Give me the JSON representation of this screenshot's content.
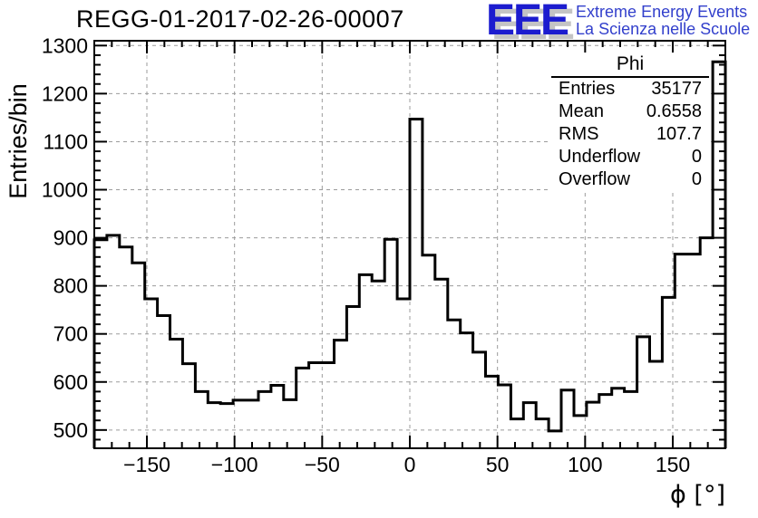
{
  "header": {
    "title": "REGG-01-2017-02-26-00007",
    "logo": {
      "acronym": "EEE",
      "line1": "Extreme Energy Events",
      "line2": "La Scienza nelle Scuole",
      "blue": "#1c1ccf",
      "shadow": "#c4c4c4"
    }
  },
  "stats_box": {
    "title": "Phi",
    "rows": [
      {
        "label": "Entries",
        "value": "35177"
      },
      {
        "label": "Mean",
        "value": "0.6558"
      },
      {
        "label": "RMS",
        "value": "107.7"
      },
      {
        "label": "Underflow",
        "value": "0"
      },
      {
        "label": "Overflow",
        "value": "0"
      }
    ]
  },
  "chart_data": {
    "type": "bar",
    "subtype": "step-histogram",
    "title": "REGG-01-2017-02-26-00007",
    "xlabel": "ϕ [°]",
    "ylabel": "Entries/bin",
    "xlim": [
      -180,
      180
    ],
    "ylim": [
      462,
      1310
    ],
    "x_major_ticks": [
      -150,
      -100,
      -50,
      0,
      50,
      100,
      150
    ],
    "y_major_ticks": [
      500,
      600,
      700,
      800,
      900,
      1000,
      1100,
      1200,
      1300
    ],
    "x_minor_step": 10,
    "y_minor_step": 20,
    "grid": true,
    "legend": "none",
    "bin_start": -180,
    "bin_width": 7.2,
    "n_bins": 50,
    "values": [
      896,
      905,
      881,
      848,
      773,
      738,
      689,
      638,
      580,
      557,
      555,
      562,
      562,
      580,
      593,
      563,
      629,
      640,
      640,
      687,
      757,
      823,
      810,
      897,
      773,
      1147,
      864,
      814,
      729,
      702,
      662,
      612,
      594,
      523,
      557,
      523,
      498,
      583,
      530,
      558,
      574,
      587,
      580,
      694,
      643,
      776,
      866,
      866,
      900,
      1266
    ],
    "line_color": "#000000",
    "grid_color": "#9b9b9b",
    "frame_color": "#000000"
  }
}
